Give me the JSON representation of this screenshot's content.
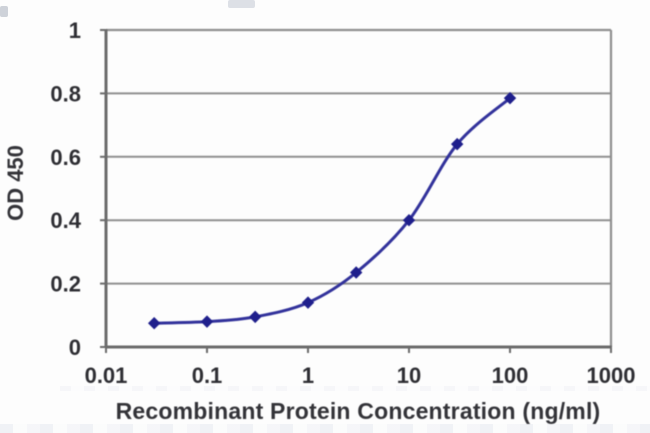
{
  "chart_data": {
    "type": "line",
    "title": "",
    "xlabel": "Recombinant Protein Concentration (ng/ml)",
    "ylabel": "OD 450",
    "x_scale": "log",
    "y_scale": "linear",
    "xlim": [
      0.01,
      1000
    ],
    "ylim": [
      0,
      1
    ],
    "x_ticks": [
      "0.01",
      "0.1",
      "1",
      "10",
      "100",
      "1000"
    ],
    "y_ticks": [
      "0",
      "0.2",
      "0.4",
      "0.6",
      "0.8",
      "1"
    ],
    "grid": "horizontal-only",
    "legend": "none",
    "series": [
      {
        "name": "OD 450 response",
        "marker": "diamond",
        "x": [
          0.03,
          0.1,
          0.3,
          1,
          3,
          10,
          30,
          100
        ],
        "y": [
          0.075,
          0.08,
          0.095,
          0.14,
          0.235,
          0.4,
          0.64,
          0.785
        ]
      }
    ]
  },
  "colors": {
    "line": "#32329b",
    "marker": "#1f1f8c",
    "gridline": "#8f8f8f",
    "axis": "#6b6b6b",
    "tick_text": "#2e2e33",
    "title_text": "#333338",
    "plot_background": "#fdfdfd"
  }
}
